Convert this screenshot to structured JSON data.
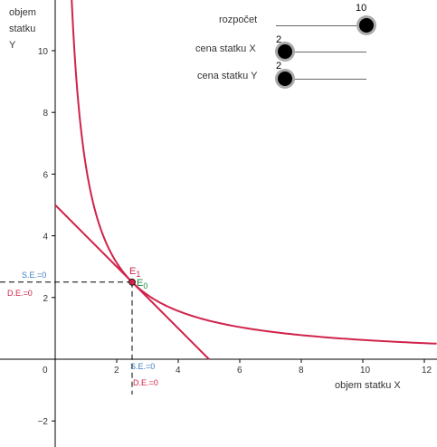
{
  "axes": {
    "x_title": "objem statku X",
    "y_title_lines": [
      "objem",
      "statku",
      "Y"
    ],
    "x_ticks": [
      "0",
      "2",
      "4",
      "6",
      "8",
      "10",
      "12"
    ],
    "y_ticks": [
      "−2",
      "2",
      "4",
      "6",
      "8",
      "10"
    ]
  },
  "annotations": {
    "e1_main": "E",
    "e1_sub": "1",
    "e0_main": "E",
    "e0_sub": "0",
    "se_y": "S.E.=0",
    "de_y": "D.E.=0",
    "se_x": "S.E.=0",
    "de_x": "D.E.=0"
  },
  "sliders": [
    {
      "label": "rozpočet",
      "value": "10",
      "fraction": 1.0
    },
    {
      "label": "cena statku X",
      "value": "2",
      "fraction": 0.1
    },
    {
      "label": "cena statku Y",
      "value": "2",
      "fraction": 0.1
    }
  ],
  "colors": {
    "curve": "#d0234a",
    "budget_line": "#d0234a",
    "point": "#d0234a",
    "se_color": "#3a7bbf",
    "de_color": "#d0234a",
    "e0_color": "#1e8c3a",
    "e1_color": "#d0234a"
  },
  "chart_data": {
    "type": "line",
    "xlabel": "objem statku X",
    "ylabel": "objem statku Y",
    "xlim": [
      -1.8,
      12.4
    ],
    "ylim": [
      -2.8,
      11.6
    ],
    "series": [
      {
        "kind": "indifference_curve",
        "equation": "x*y = 6.25",
        "points": [
          [
            0.54,
            11.6
          ],
          [
            1,
            6.25
          ],
          [
            1.5,
            4.17
          ],
          [
            2,
            3.125
          ],
          [
            2.5,
            2.5
          ],
          [
            3,
            2.08
          ],
          [
            4,
            1.56
          ],
          [
            6,
            1.04
          ],
          [
            8,
            0.78
          ],
          [
            10,
            0.625
          ],
          [
            12.4,
            0.5
          ]
        ]
      },
      {
        "kind": "budget_line",
        "x": [
          0,
          5
        ],
        "y": [
          5,
          0
        ]
      }
    ],
    "equilibrium": {
      "x": 2.5,
      "y": 2.5
    }
  }
}
